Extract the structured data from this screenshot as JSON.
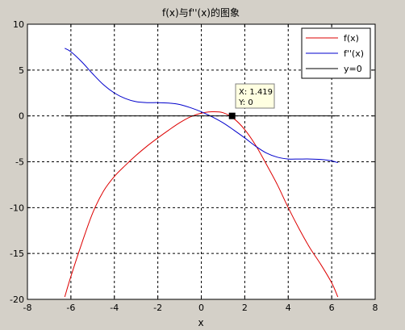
{
  "figure": {
    "background": "#d4d0c8"
  },
  "chart_data": {
    "type": "line",
    "title": "f(x)与f''(x)的图象",
    "xlabel": "x",
    "ylabel": "",
    "xlim": [
      -8,
      8
    ],
    "ylim": [
      -20,
      10
    ],
    "xticks": [
      -8,
      -6,
      -4,
      -2,
      0,
      2,
      4,
      6,
      8
    ],
    "yticks": [
      10,
      5,
      0,
      -5,
      -10,
      -15,
      -20
    ],
    "x_tick_labels": [
      "-8",
      "-6",
      "-4",
      "-2",
      "0",
      "2",
      "4",
      "6",
      "8"
    ],
    "y_tick_labels": [
      "10",
      "5",
      "0",
      "-5",
      "-10",
      "-15",
      "-20"
    ],
    "grid": true,
    "legend_position": "top-right",
    "series": [
      {
        "name": "f(x)",
        "color": "#dd0000",
        "x": [
          -6.2832,
          -6.0,
          -5.5,
          -5.0,
          -4.5,
          -4.0,
          -3.5,
          -3.0,
          -2.5,
          -2.0,
          -1.5,
          -1.0,
          -0.5,
          0.0,
          0.5,
          1.0,
          1.5,
          2.0,
          2.5,
          3.0,
          3.5,
          4.0,
          4.5,
          5.0,
          5.5,
          6.0,
          6.2832
        ],
        "y": [
          -19.74,
          -17.5,
          -13.9,
          -10.6,
          -8.2,
          -6.6,
          -5.4,
          -4.3,
          -3.3,
          -2.4,
          -1.55,
          -0.75,
          -0.1,
          0.3,
          0.45,
          0.35,
          -0.3,
          -1.5,
          -3.2,
          -5.3,
          -7.5,
          -10.0,
          -12.3,
          -14.4,
          -16.2,
          -18.2,
          -19.74
        ]
      },
      {
        "name": "f''(x)",
        "color": "#0000cc",
        "x": [
          -6.2832,
          -6.0,
          -5.5,
          -5.0,
          -4.5,
          -4.0,
          -3.5,
          -3.0,
          -2.5,
          -2.0,
          -1.5,
          -1.0,
          -0.5,
          0.0,
          0.5,
          1.0,
          1.5,
          2.0,
          2.5,
          3.0,
          3.5,
          4.0,
          4.5,
          5.0,
          5.5,
          6.0,
          6.2832
        ],
        "y": [
          7.38,
          7.0,
          5.9,
          4.6,
          3.4,
          2.5,
          1.9,
          1.55,
          1.45,
          1.45,
          1.4,
          1.25,
          0.9,
          0.45,
          -0.1,
          -0.75,
          -1.55,
          -2.4,
          -3.3,
          -4.05,
          -4.5,
          -4.7,
          -4.7,
          -4.7,
          -4.75,
          -4.9,
          -5.1
        ]
      },
      {
        "name": "y=0",
        "color": "#000000",
        "x": [
          -6.2832,
          6.2832
        ],
        "y": [
          0,
          0
        ]
      }
    ],
    "datatip": {
      "x_label": "X: 1.419",
      "y_label": "Y: 0",
      "point": [
        1.419,
        0
      ]
    }
  }
}
